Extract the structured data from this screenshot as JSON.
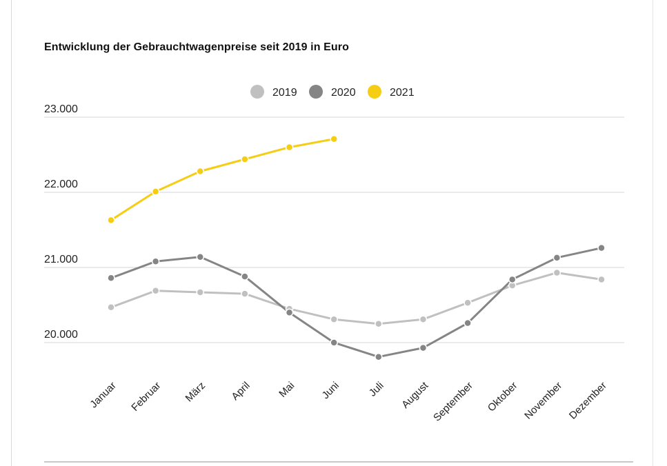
{
  "chart_data": {
    "type": "line",
    "title": "Entwicklung der Gebrauchtwagenpreise seit 2019 in Euro",
    "xlabel": "",
    "ylabel": "",
    "categories": [
      "Januar",
      "Februar",
      "März",
      "April",
      "Mai",
      "Juni",
      "Juli",
      "August",
      "September",
      "Oktober",
      "November",
      "Dezember"
    ],
    "y_ticks": [
      {
        "value": 20000,
        "label": "20.000"
      },
      {
        "value": 21000,
        "label": "21.000"
      },
      {
        "value": 22000,
        "label": "22.000"
      },
      {
        "value": 23000,
        "label": "23.000"
      }
    ],
    "ylim": [
      20000,
      23000
    ],
    "grid": true,
    "legend_position": "top-center",
    "series": [
      {
        "name": "2019",
        "color": "#c0c0c0",
        "values": [
          20470,
          20690,
          20670,
          20650,
          20450,
          20310,
          20250,
          20310,
          20530,
          20760,
          20930,
          20840
        ]
      },
      {
        "name": "2020",
        "color": "#858585",
        "values": [
          20860,
          21080,
          21140,
          20880,
          20400,
          20000,
          19810,
          19930,
          20260,
          20840,
          21130,
          21260
        ]
      },
      {
        "name": "2021",
        "color": "#f5cd14",
        "values": [
          21630,
          22010,
          22280,
          22440,
          22600,
          22710,
          null,
          null,
          null,
          null,
          null,
          null
        ]
      }
    ]
  }
}
